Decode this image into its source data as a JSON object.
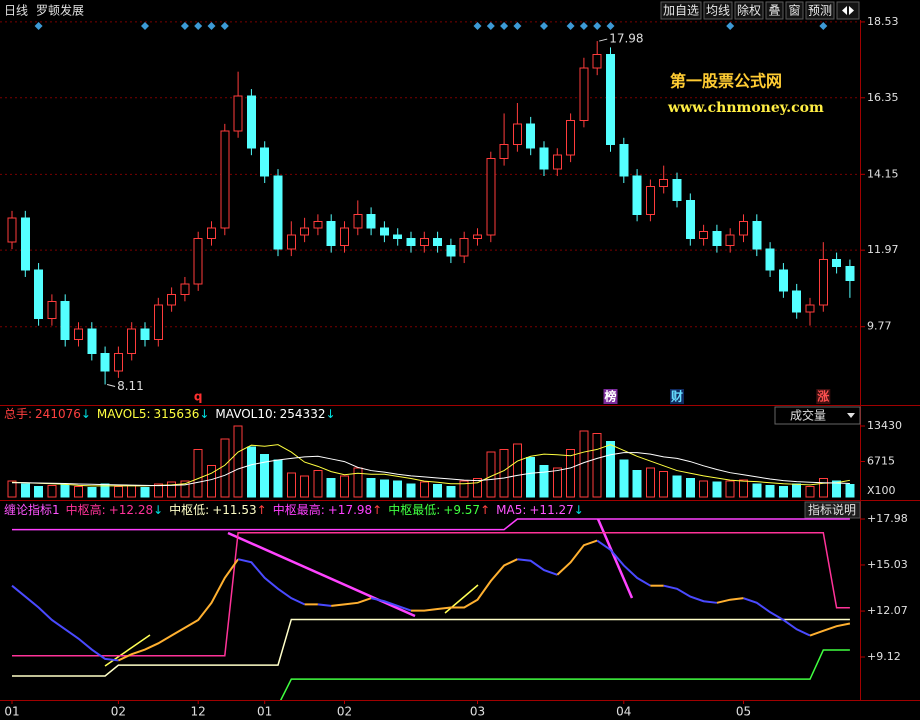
{
  "header": {
    "period": "日线",
    "stock": "罗顿发展",
    "buttons": [
      "加自选",
      "均线",
      "除权",
      "叠",
      "窗",
      "预测"
    ]
  },
  "watermark": {
    "title": "第一股票公式网",
    "url": "www.chnmoney.com"
  },
  "chart_data": [
    {
      "type": "candlestick",
      "open": [
        12.2,
        12.9,
        11.4,
        10.0,
        10.5,
        9.4,
        9.7,
        9.0,
        8.5,
        9.0,
        9.7,
        9.4,
        10.4,
        10.7,
        11.0,
        12.3,
        12.6,
        15.4,
        16.4,
        14.9,
        14.1,
        12.0,
        12.4,
        12.6,
        12.8,
        12.1,
        12.6,
        13.0,
        12.6,
        12.4,
        12.3,
        12.1,
        12.3,
        12.1,
        11.8,
        12.3,
        12.4,
        14.6,
        15.0,
        15.6,
        14.9,
        14.3,
        14.7,
        15.7,
        17.2,
        17.6,
        15.0,
        14.1,
        13.0,
        13.8,
        14.0,
        13.4,
        12.3,
        12.5,
        12.1,
        12.4,
        12.8,
        12.0,
        11.4,
        10.8,
        10.2,
        10.4,
        11.7,
        11.5
      ],
      "high": [
        13.1,
        13.1,
        11.6,
        10.7,
        10.7,
        9.9,
        9.9,
        9.2,
        9.2,
        9.9,
        9.9,
        10.6,
        10.9,
        11.2,
        12.5,
        12.8,
        15.6,
        17.1,
        16.6,
        15.1,
        14.3,
        12.8,
        12.9,
        13.0,
        13.0,
        12.8,
        13.4,
        13.2,
        12.8,
        12.6,
        12.5,
        12.5,
        12.5,
        12.3,
        12.5,
        12.6,
        14.8,
        15.9,
        16.2,
        15.8,
        15.1,
        14.9,
        15.9,
        17.5,
        17.98,
        17.8,
        15.2,
        14.3,
        14.0,
        14.4,
        14.2,
        13.6,
        12.7,
        12.7,
        12.6,
        13.0,
        13.0,
        12.2,
        11.6,
        11.0,
        10.6,
        12.2,
        11.9,
        11.7
      ],
      "low": [
        12.0,
        11.2,
        9.8,
        9.8,
        9.2,
        9.2,
        8.8,
        8.11,
        8.3,
        8.8,
        9.2,
        9.2,
        10.2,
        10.5,
        10.8,
        12.1,
        12.4,
        15.2,
        14.7,
        13.9,
        11.8,
        11.8,
        12.2,
        12.4,
        11.9,
        11.9,
        12.4,
        12.4,
        12.2,
        12.1,
        11.9,
        11.9,
        11.9,
        11.6,
        11.6,
        12.1,
        12.2,
        14.4,
        14.8,
        14.7,
        14.1,
        14.1,
        14.5,
        15.5,
        17.0,
        14.8,
        13.9,
        12.8,
        12.8,
        13.6,
        13.2,
        12.1,
        12.1,
        11.9,
        11.9,
        12.2,
        11.8,
        11.2,
        10.6,
        10.0,
        9.8,
        10.2,
        11.3,
        10.6
      ],
      "close": [
        12.9,
        11.4,
        10.0,
        10.5,
        9.4,
        9.7,
        9.0,
        8.5,
        9.0,
        9.7,
        9.4,
        10.4,
        10.7,
        11.0,
        12.3,
        12.6,
        15.4,
        16.4,
        14.9,
        14.1,
        12.0,
        12.4,
        12.6,
        12.8,
        12.1,
        12.6,
        13.0,
        12.6,
        12.4,
        12.3,
        12.1,
        12.3,
        12.1,
        11.8,
        12.3,
        12.4,
        14.6,
        15.0,
        15.6,
        14.9,
        14.3,
        14.7,
        15.7,
        17.2,
        17.6,
        15.0,
        14.1,
        13.0,
        13.8,
        14.0,
        13.4,
        12.3,
        12.5,
        12.1,
        12.4,
        12.8,
        12.0,
        11.4,
        10.8,
        10.2,
        10.4,
        11.7,
        11.5,
        11.1
      ],
      "up_color": "#ff3c3c",
      "down_color": "#54ffff",
      "ylim": [
        7.52,
        19.16
      ],
      "yticks": [
        18.53,
        16.35,
        14.15,
        11.97,
        9.77
      ],
      "grid": true,
      "signals": [
        2,
        10,
        13,
        14,
        15,
        16,
        35,
        36,
        37,
        38,
        40,
        42,
        43,
        44,
        45,
        54,
        61
      ],
      "signal_color": "#3d9ad6",
      "markers": [
        {
          "text": "q",
          "index": 14,
          "color": "#ff3030",
          "bg": "#000000"
        },
        {
          "text": "榜",
          "index": 45,
          "color": "#ffffff",
          "bg": "#7a2a9a"
        },
        {
          "text": "财",
          "index": 50,
          "color": "#66ddff",
          "bg": "#102a60"
        },
        {
          "text": "涨",
          "index": 61,
          "color": "#ff5050",
          "bg": "#401010"
        }
      ]
    },
    {
      "type": "bar",
      "name": "总手:",
      "label_color": "#ff4040",
      "value_label": "241076",
      "arrow": "↓",
      "arrow_color": "#00e0e0",
      "values": [
        3000,
        2500,
        2000,
        2200,
        2300,
        2000,
        1800,
        2500,
        2000,
        2200,
        1800,
        2500,
        2800,
        3000,
        9000,
        6000,
        11000,
        13430,
        9500,
        8000,
        7000,
        4500,
        4000,
        5000,
        3500,
        4000,
        5500,
        3500,
        3200,
        3000,
        2500,
        2800,
        2400,
        2000,
        3000,
        3500,
        8500,
        9000,
        10000,
        7500,
        6000,
        5500,
        9000,
        12500,
        12000,
        10500,
        7000,
        5000,
        5500,
        4800,
        4000,
        3500,
        3000,
        2800,
        3000,
        3200,
        2500,
        2200,
        2000,
        2500,
        2000,
        3500,
        3000,
        2410.76
      ],
      "series": [
        {
          "name": "MAVOL5:",
          "color": "#ffff40",
          "value_label": "315636",
          "arrow": "↓",
          "arrow_color": "#00e0e0",
          "values": [
            2800,
            2700,
            2600,
            2500,
            2400,
            2200,
            2100,
            2100,
            2100,
            2100,
            2100,
            2200,
            2300,
            2500,
            3500,
            4500,
            6000,
            8500,
            9800,
            9600,
            9900,
            8500,
            6600,
            5800,
            4800,
            4200,
            4500,
            4300,
            4300,
            3900,
            3500,
            3000,
            2800,
            2500,
            2500,
            2700,
            3900,
            5000,
            6800,
            7700,
            8100,
            8000,
            7800,
            8500,
            9000,
            9900,
            8800,
            7700,
            6800,
            5900,
            5000,
            4500,
            4000,
            3600,
            3200,
            3000,
            2900,
            2700,
            2500,
            2400,
            2300,
            2600,
            2700,
            3156.36
          ]
        },
        {
          "name": "MAVOL10:",
          "color": "#ffffff",
          "value_label": "254332",
          "arrow": "↓",
          "arrow_color": "#00e0e0",
          "values": [
            2700,
            2700,
            2650,
            2600,
            2550,
            2450,
            2400,
            2350,
            2300,
            2250,
            2200,
            2150,
            2200,
            2300,
            2800,
            3300,
            4100,
            5300,
            6100,
            6600,
            7000,
            7300,
            7600,
            7700,
            7200,
            6700,
            5600,
            5000,
            4700,
            4300,
            4000,
            3800,
            3600,
            3400,
            3200,
            3100,
            3300,
            3600,
            4100,
            4500,
            4700,
            5000,
            5500,
            6500,
            7300,
            8000,
            8400,
            8400,
            8100,
            7600,
            7300,
            6700,
            5900,
            5200,
            4600,
            4200,
            3800,
            3400,
            3100,
            2900,
            2800,
            2700,
            2650,
            2543.32
          ]
        }
      ],
      "ylim": [
        0,
        14187
      ],
      "yticks": [
        13430,
        6715
      ],
      "unit_label": "X100",
      "selector": "成交量"
    },
    {
      "type": "line",
      "title": "缠论指标1",
      "title_color": "#ff55ff",
      "button": "指标说明",
      "rise_color": "#ffb030",
      "fall_color": "#4a4aff",
      "ylim": [
        6.36,
        18.88
      ],
      "yticks": [
        {
          "value": 17.98,
          "label": "+17.98"
        },
        {
          "value": 15.03,
          "label": "+15.03"
        },
        {
          "value": 12.07,
          "label": "+12.07"
        },
        {
          "value": 9.12,
          "label": "+9.12"
        }
      ],
      "xticks": [
        {
          "value": 0,
          "label": "01"
        },
        {
          "value": 8,
          "label": "02"
        },
        {
          "value": 14,
          "label": "12"
        },
        {
          "value": 19,
          "label": "01"
        },
        {
          "value": 25,
          "label": "02"
        },
        {
          "value": 35,
          "label": "03"
        },
        {
          "value": 46,
          "label": "04"
        },
        {
          "value": 55,
          "label": "05"
        }
      ],
      "series": [
        {
          "name": "中枢高:",
          "color": "#ff3399",
          "value_label": "+12.28",
          "arrow": "↓",
          "arrow_color": "#00e0e0",
          "values": [
            9.2,
            9.2,
            9.2,
            9.2,
            9.2,
            9.2,
            9.2,
            9.2,
            9.2,
            9.2,
            9.2,
            9.2,
            9.2,
            9.2,
            9.2,
            9.2,
            9.2,
            17.1,
            17.1,
            17.1,
            17.1,
            17.1,
            17.1,
            17.1,
            17.1,
            17.1,
            17.1,
            17.1,
            17.1,
            17.1,
            17.1,
            17.1,
            17.1,
            17.1,
            17.1,
            17.1,
            17.1,
            17.1,
            17.1,
            17.1,
            17.1,
            17.1,
            17.1,
            17.1,
            17.1,
            17.1,
            17.1,
            17.1,
            17.1,
            17.1,
            17.1,
            17.1,
            17.1,
            17.1,
            17.1,
            17.1,
            17.1,
            17.1,
            17.1,
            17.1,
            17.1,
            17.1,
            12.28,
            12.28
          ]
        },
        {
          "name": "中枢低:",
          "color": "#ffffc8",
          "value_label": "+11.53",
          "arrow": "↑",
          "arrow_color": "#ff4040",
          "values": [
            7.9,
            7.9,
            7.9,
            7.9,
            7.9,
            7.9,
            7.9,
            7.9,
            8.6,
            8.6,
            8.6,
            8.6,
            8.6,
            8.6,
            8.6,
            8.6,
            8.6,
            8.6,
            8.6,
            8.6,
            8.6,
            11.53,
            11.53,
            11.53,
            11.53,
            11.53,
            11.53,
            11.53,
            11.53,
            11.53,
            11.53,
            11.53,
            11.53,
            11.53,
            11.53,
            11.53,
            11.53,
            11.53,
            11.53,
            11.53,
            11.53,
            11.53,
            11.53,
            11.53,
            11.53,
            11.53,
            11.53,
            11.53,
            11.53,
            11.53,
            11.53,
            11.53,
            11.53,
            11.53,
            11.53,
            11.53,
            11.53,
            11.53,
            11.53,
            11.53,
            11.53,
            11.53,
            11.53,
            11.53
          ]
        },
        {
          "name": "中枢最高:",
          "color": "#ff40ff",
          "value_label": "+17.98",
          "arrow": "↑",
          "arrow_color": "#ff4040",
          "values": [
            17.3,
            17.3,
            17.3,
            17.3,
            17.3,
            17.3,
            17.3,
            17.3,
            17.3,
            17.3,
            17.3,
            17.3,
            17.3,
            17.3,
            17.3,
            17.3,
            17.3,
            17.3,
            17.3,
            17.3,
            17.3,
            17.3,
            17.3,
            17.3,
            17.3,
            17.3,
            17.3,
            17.3,
            17.3,
            17.3,
            17.3,
            17.3,
            17.3,
            17.3,
            17.3,
            17.3,
            17.3,
            17.3,
            17.98,
            17.98,
            17.98,
            17.98,
            17.98,
            17.98,
            17.98,
            17.98,
            17.98,
            17.98,
            17.98,
            17.98,
            17.98,
            17.98,
            17.98,
            17.98,
            17.98,
            17.98,
            17.98,
            17.98,
            17.98,
            17.98,
            17.98,
            17.98,
            17.98,
            17.98
          ]
        },
        {
          "name": "中枢最低:",
          "color": "#40ff40",
          "value_label": "+9.57",
          "arrow": "↑",
          "arrow_color": "#ff4040",
          "values": [
            6.0,
            6.0,
            6.0,
            6.0,
            6.0,
            6.0,
            6.0,
            6.0,
            6.0,
            6.0,
            6.0,
            6.0,
            6.0,
            6.0,
            6.0,
            6.0,
            6.0,
            6.0,
            6.0,
            6.0,
            6.0,
            7.7,
            7.7,
            7.7,
            7.7,
            7.7,
            7.7,
            7.7,
            7.7,
            7.7,
            7.7,
            7.7,
            7.7,
            7.7,
            7.7,
            7.7,
            7.7,
            7.7,
            7.7,
            7.7,
            7.7,
            7.7,
            7.7,
            7.7,
            7.7,
            7.7,
            7.7,
            7.7,
            7.7,
            7.7,
            7.7,
            7.7,
            7.7,
            7.7,
            7.7,
            7.7,
            7.7,
            7.7,
            7.7,
            7.7,
            7.7,
            9.57,
            9.57,
            9.57
          ]
        },
        {
          "name": "MA5:",
          "color": "#ff55ff",
          "value_label": "+11.27",
          "arrow": "↓",
          "arrow_color": "#00e0e0",
          "trend_colored": true,
          "values": [
            13.7,
            13.0,
            12.3,
            11.5,
            10.9,
            10.3,
            9.6,
            9.0,
            8.9,
            9.3,
            9.6,
            10.0,
            10.5,
            11.0,
            11.5,
            12.6,
            14.2,
            15.4,
            15.2,
            14.2,
            13.5,
            12.9,
            12.5,
            12.5,
            12.4,
            12.5,
            12.6,
            12.9,
            12.7,
            12.4,
            12.1,
            12.1,
            12.2,
            12.3,
            12.3,
            12.8,
            14.0,
            15.0,
            15.4,
            15.3,
            14.7,
            14.4,
            15.2,
            16.3,
            16.6,
            16.0,
            15.0,
            14.2,
            13.7,
            13.7,
            13.5,
            13.0,
            12.7,
            12.6,
            12.8,
            12.9,
            12.6,
            12.0,
            11.5,
            10.9,
            10.5,
            10.8,
            11.1,
            11.27
          ]
        }
      ]
    }
  ]
}
